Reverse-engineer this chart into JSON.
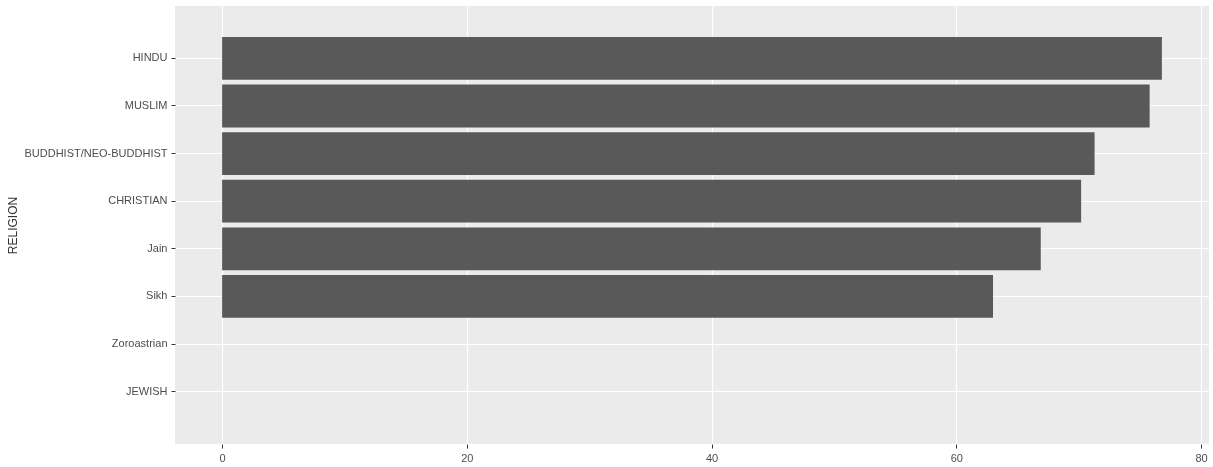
{
  "chart_data": {
    "type": "bar",
    "orientation": "horizontal",
    "ylabel": "RELIGION",
    "categories": [
      "HINDU",
      "MUSLIM",
      "BUDDHIST/NEO-BUDDHIST",
      "CHRISTIAN",
      "Jain",
      "Sikh",
      "Zoroastrian",
      "JEWISH"
    ],
    "values": [
      76.8,
      75.8,
      71.3,
      70.2,
      66.9,
      63.0,
      null,
      null
    ],
    "color": "#595959",
    "xlim": [
      -3.85,
      80.65
    ],
    "xticks": [
      0,
      20,
      40,
      60,
      80
    ],
    "grid": true
  }
}
